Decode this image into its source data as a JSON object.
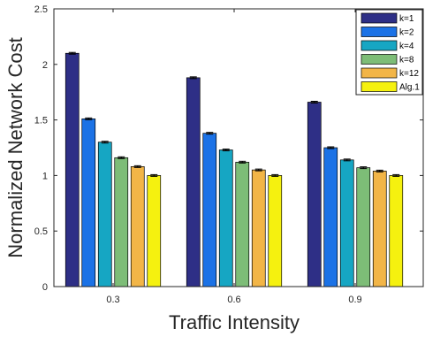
{
  "chart_data": {
    "type": "bar",
    "xlabel": "Traffic Intensity",
    "ylabel": "Normalized Network Cost",
    "categories": [
      "0.3",
      "0.6",
      "0.9"
    ],
    "ylim": [
      0,
      2.5
    ],
    "yticks": [
      "0",
      "0.5",
      "1",
      "1.5",
      "2",
      "2.5"
    ],
    "grid": false,
    "legend_position": "top-right",
    "error_bars": true,
    "series": [
      {
        "name": "k=1",
        "color": "#2e2f86",
        "values": [
          2.1,
          1.88,
          1.66
        ]
      },
      {
        "name": "k=2",
        "color": "#1b72e6",
        "values": [
          1.51,
          1.38,
          1.25
        ]
      },
      {
        "name": "k=4",
        "color": "#16a6c3",
        "values": [
          1.3,
          1.23,
          1.14
        ]
      },
      {
        "name": "k=8",
        "color": "#7dbd77",
        "values": [
          1.16,
          1.12,
          1.07
        ]
      },
      {
        "name": "k=12",
        "color": "#f2b547",
        "values": [
          1.08,
          1.05,
          1.04
        ]
      },
      {
        "name": "Alg.1",
        "color": "#f5f10f",
        "values": [
          1.0,
          1.0,
          1.0
        ]
      }
    ]
  }
}
